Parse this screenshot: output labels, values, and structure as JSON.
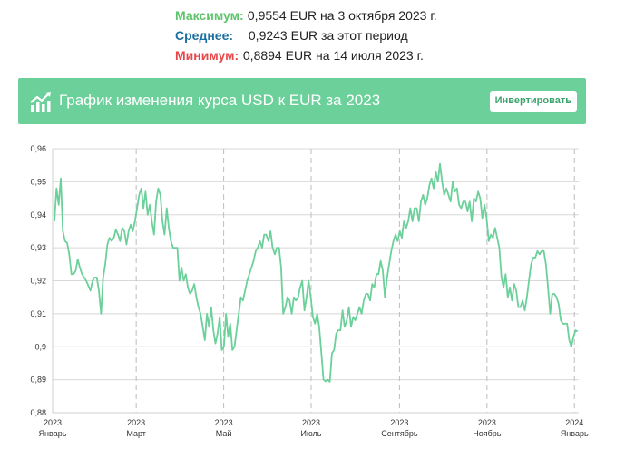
{
  "stats": {
    "max": {
      "label": "Максимум:",
      "text": "0,9554 EUR на 3 октября 2023 г.",
      "color": "#5cc46a"
    },
    "avg": {
      "label": "Среднее:",
      "text": "0,9243 EUR за этот период",
      "color": "#1a6fa0"
    },
    "min": {
      "label": "Минимум:",
      "text": "0,8894 EUR на 14 июля 2023 г.",
      "color": "#e8474a"
    }
  },
  "header": {
    "title": "График изменения курса USD к EUR за 2023",
    "invert_label": "Инвертировать",
    "background": "#6bd09a"
  },
  "chart_data": {
    "type": "line",
    "series": [
      {
        "values": [
          0.938,
          0.948,
          0.943,
          0.951,
          0.935,
          0.932,
          0.9315,
          0.928,
          0.922,
          0.922,
          0.923,
          0.9265,
          0.924,
          0.922,
          0.921,
          0.92,
          0.9185,
          0.917,
          0.92,
          0.921,
          0.921,
          0.917,
          0.91,
          0.921,
          0.925,
          0.931,
          0.933,
          0.932,
          0.933,
          0.9355,
          0.934,
          0.932,
          0.936,
          0.935,
          0.931,
          0.935,
          0.937,
          0.935,
          0.938,
          0.942,
          0.946,
          0.948,
          0.942,
          0.947,
          0.94,
          0.943,
          0.938,
          0.934,
          0.944,
          0.948,
          0.946,
          0.938,
          0.934,
          0.942,
          0.936,
          0.932,
          0.93,
          0.93,
          0.93,
          0.92,
          0.924,
          0.92,
          0.922,
          0.918,
          0.916,
          0.917,
          0.919,
          0.915,
          0.912,
          0.91,
          0.906,
          0.902,
          0.91,
          0.906,
          0.912,
          0.905,
          0.901,
          0.904,
          0.909,
          0.899,
          0.9,
          0.91,
          0.903,
          0.907,
          0.899,
          0.9,
          0.905,
          0.91,
          0.915,
          0.914,
          0.917,
          0.92,
          0.922,
          0.924,
          0.926,
          0.929,
          0.93,
          0.932,
          0.93,
          0.934,
          0.934,
          0.932,
          0.935,
          0.93,
          0.928,
          0.93,
          0.93,
          0.924,
          0.91,
          0.912,
          0.915,
          0.914,
          0.91,
          0.915,
          0.914,
          0.915,
          0.918,
          0.92,
          0.911,
          0.915,
          0.92,
          0.915,
          0.909,
          0.907,
          0.91,
          0.906,
          0.898,
          0.89,
          0.8895,
          0.89,
          0.8894,
          0.898,
          0.899,
          0.904,
          0.905,
          0.905,
          0.911,
          0.906,
          0.908,
          0.912,
          0.906,
          0.909,
          0.908,
          0.91,
          0.912,
          0.91,
          0.914,
          0.916,
          0.916,
          0.914,
          0.919,
          0.918,
          0.922,
          0.922,
          0.926,
          0.923,
          0.915,
          0.921,
          0.925,
          0.929,
          0.932,
          0.934,
          0.932,
          0.935,
          0.933,
          0.938,
          0.936,
          0.938,
          0.942,
          0.938,
          0.942,
          0.942,
          0.938,
          0.944,
          0.946,
          0.943,
          0.945,
          0.949,
          0.951,
          0.948,
          0.953,
          0.95,
          0.9554,
          0.95,
          0.946,
          0.948,
          0.946,
          0.944,
          0.95,
          0.947,
          0.948,
          0.943,
          0.942,
          0.944,
          0.944,
          0.941,
          0.944,
          0.938,
          0.945,
          0.944,
          0.947,
          0.945,
          0.939,
          0.943,
          0.939,
          0.932,
          0.934,
          0.933,
          0.936,
          0.933,
          0.93,
          0.921,
          0.918,
          0.922,
          0.915,
          0.918,
          0.914,
          0.919,
          0.917,
          0.912,
          0.912,
          0.914,
          0.911,
          0.915,
          0.92,
          0.925,
          0.927,
          0.927,
          0.929,
          0.928,
          0.929,
          0.929,
          0.925,
          0.918,
          0.91,
          0.916,
          0.916,
          0.915,
          0.913,
          0.908,
          0.907,
          0.907,
          0.907,
          0.902,
          0.9,
          0.903,
          0.905,
          0.9046
        ]
      }
    ],
    "x_labels": [
      {
        "year": "2023",
        "month": "Январь",
        "pos": 0.0
      },
      {
        "year": "2023",
        "month": "Март",
        "pos": 0.1589
      },
      {
        "year": "2023",
        "month": "Май",
        "pos": 0.3252
      },
      {
        "year": "2023",
        "month": "Июль",
        "pos": 0.4914
      },
      {
        "year": "2023",
        "month": "Сентябрь",
        "pos": 0.6593
      },
      {
        "year": "2023",
        "month": "Ноябрь",
        "pos": 0.8256
      },
      {
        "year": "2024",
        "month": "Январь",
        "pos": 0.9918
      }
    ],
    "y_ticks": [
      0.88,
      0.89,
      0.9,
      0.91,
      0.92,
      0.93,
      0.94,
      0.95,
      0.96
    ],
    "y_tick_labels": [
      "0,88",
      "0,89",
      "0,9",
      "0,91",
      "0,92",
      "0,93",
      "0,94",
      "0,95",
      "0,96"
    ],
    "ylim": [
      0.88,
      0.96
    ],
    "grid": true,
    "line_color": "#6bd09a"
  }
}
